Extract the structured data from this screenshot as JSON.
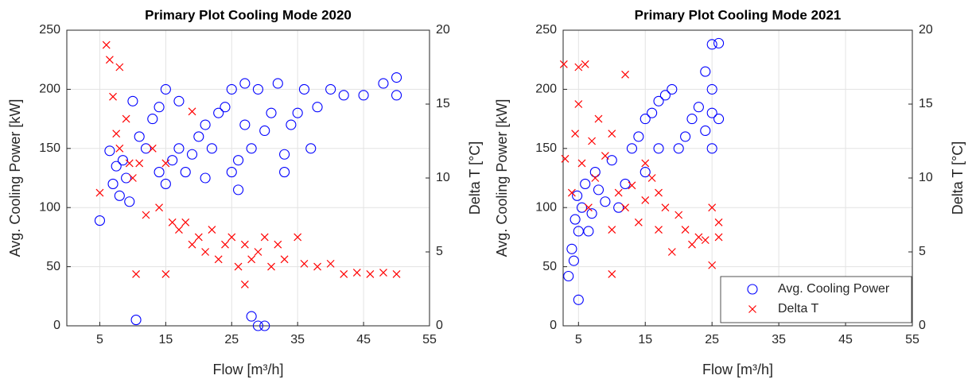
{
  "chart_data": [
    {
      "type": "scatter",
      "title": "Primary Plot Cooling Mode 2020",
      "x_label": "Flow [m³/h]",
      "y_label": "Avg. Cooling Power [kW]",
      "y2_label": "Delta T [°C]",
      "xlim": [
        0,
        55
      ],
      "xticks": [
        5,
        15,
        25,
        35,
        45,
        55
      ],
      "ylim": [
        0,
        250
      ],
      "yticks": [
        0,
        50,
        100,
        150,
        200,
        250
      ],
      "y2lim": [
        0,
        20
      ],
      "y2ticks": [
        0,
        5,
        10,
        15,
        20
      ],
      "grid": true,
      "series": [
        {
          "name": "Avg. Cooling Power",
          "color": "#0000ff",
          "marker": "o",
          "x": [
            5,
            6.5,
            7,
            7.5,
            8,
            8.5,
            9,
            9.5,
            10,
            10.5,
            11,
            12,
            13,
            14,
            15,
            14,
            15,
            16,
            17,
            17,
            18,
            19,
            20,
            21,
            21,
            22,
            23,
            24,
            25,
            25,
            26,
            27,
            27,
            28,
            28,
            29,
            30,
            29,
            30,
            31,
            32,
            33,
            34,
            35,
            36,
            37,
            38,
            40,
            42,
            45,
            48,
            50,
            50,
            33,
            26
          ],
          "values": [
            89,
            148,
            120,
            135,
            110,
            140,
            125,
            105,
            190,
            5,
            160,
            150,
            175,
            185,
            200,
            130,
            120,
            140,
            150,
            190,
            130,
            145,
            160,
            170,
            125,
            150,
            180,
            185,
            200,
            130,
            140,
            170,
            205,
            150,
            8,
            0,
            0,
            200,
            165,
            180,
            205,
            145,
            170,
            180,
            200,
            150,
            185,
            200,
            195,
            195,
            205,
            210,
            195,
            130,
            115
          ]
        },
        {
          "name": "Delta T",
          "color": "#ff0000",
          "marker": "x",
          "axis": "y2",
          "x": [
            5,
            6,
            6.5,
            7,
            7.5,
            8,
            8,
            9,
            9.5,
            10,
            10.5,
            11,
            12,
            13,
            14,
            15,
            15,
            16,
            17,
            18,
            19,
            20,
            21,
            22,
            23,
            24,
            25,
            26,
            27,
            27,
            28,
            29,
            30,
            31,
            32,
            33,
            35,
            36,
            38,
            40,
            42,
            44,
            46,
            48,
            50,
            19
          ],
          "values": [
            9,
            19,
            18,
            15.5,
            13,
            17.5,
            12,
            14,
            11,
            10,
            3.5,
            11,
            7.5,
            12,
            8,
            11,
            3.5,
            7,
            6.5,
            7,
            5.5,
            6,
            5,
            6.5,
            4.5,
            5.5,
            6,
            4,
            5.5,
            2.8,
            4.5,
            5,
            6,
            4,
            5.5,
            4.5,
            6,
            4.2,
            4,
            4.2,
            3.5,
            3.6,
            3.5,
            3.6,
            3.5,
            14.5
          ]
        }
      ]
    },
    {
      "type": "scatter",
      "title": "Primary Plot Cooling Mode 2021",
      "x_label": "Flow [m³/h]",
      "y_label": "Avg. Cooling Power [kW]",
      "y2_label": "Delta T [°C]",
      "xlim": [
        2.7,
        55
      ],
      "xticks": [
        5,
        15,
        25,
        35,
        45,
        55
      ],
      "ylim": [
        0,
        250
      ],
      "yticks": [
        0,
        50,
        100,
        150,
        200,
        250
      ],
      "y2lim": [
        0,
        20
      ],
      "y2ticks": [
        0,
        5,
        10,
        15,
        20
      ],
      "grid": true,
      "legend": "lower right",
      "series": [
        {
          "name": "Avg. Cooling Power",
          "color": "#0000ff",
          "marker": "o",
          "x": [
            3.5,
            4,
            4.3,
            4.5,
            4.8,
            5,
            5,
            5.5,
            6,
            6.5,
            7,
            7.5,
            8,
            9,
            10,
            11,
            12,
            13,
            14,
            15,
            15,
            16,
            17,
            18,
            19,
            20,
            21,
            22,
            23,
            24,
            25,
            25,
            25,
            25,
            26,
            26,
            24,
            17
          ],
          "values": [
            42,
            65,
            55,
            90,
            110,
            22,
            80,
            100,
            120,
            80,
            95,
            130,
            115,
            105,
            140,
            100,
            120,
            150,
            160,
            130,
            175,
            180,
            150,
            195,
            200,
            150,
            160,
            175,
            185,
            215,
            238,
            200,
            150,
            180,
            239,
            175,
            165,
            190
          ]
        },
        {
          "name": "Delta T",
          "color": "#ff0000",
          "marker": "x",
          "axis": "y2",
          "x": [
            2.8,
            3,
            4,
            4.5,
            5,
            5,
            5.5,
            6,
            6.5,
            7,
            7.5,
            8,
            9,
            10,
            10,
            11,
            12,
            12,
            13,
            14,
            15,
            15,
            16,
            17,
            17,
            18,
            19,
            20,
            21,
            22,
            23,
            24,
            25,
            25,
            26,
            26,
            10
          ],
          "values": [
            17.7,
            11.3,
            9,
            13,
            17.5,
            15,
            11,
            17.7,
            8,
            12.5,
            10,
            14,
            11.5,
            13,
            3.5,
            9,
            17,
            8,
            9.5,
            7,
            8.5,
            11,
            10,
            9,
            6.5,
            8,
            5,
            7.5,
            6.5,
            5.5,
            6,
            5.8,
            8,
            4.1,
            7,
            6,
            6.5
          ]
        }
      ]
    }
  ]
}
